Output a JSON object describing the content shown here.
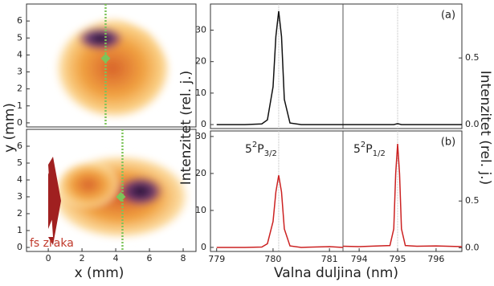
{
  "chart_data": [
    {
      "type": "image",
      "xlim": [
        -1.29,
        8.76
      ],
      "ylim": [
        -0.24,
        7.0
      ],
      "yticks": [
        0,
        1,
        2,
        3,
        4,
        5,
        6
      ],
      "cut_x": 3.4,
      "point": {
        "x": 3.4,
        "y": 3.8
      },
      "marker_color": "#7cc45a"
    },
    {
      "type": "image",
      "xlim": [
        -1.29,
        8.76
      ],
      "ylim": [
        -0.24,
        7.0
      ],
      "xticks": [
        0,
        2,
        4,
        6,
        8
      ],
      "yticks": [
        0,
        1,
        2,
        3,
        4,
        5,
        6
      ],
      "cut_x": 4.4,
      "point": {
        "x": 4.3,
        "y": 3.0
      },
      "marker_color": "#7cc45a",
      "xlabel": "x (mm)",
      "ylabel": "y (mm)",
      "annotation": "fs zraka",
      "annotation_color": "#c0392b"
    },
    {
      "type": "line",
      "panel_label": "(a)",
      "color": "#111111",
      "ylim": [
        -1.26,
        38.3
      ],
      "yticks": [
        0,
        10,
        20,
        30
      ],
      "y2lim": [
        -0.03,
        0.905
      ],
      "y2ticks": [
        {
          "value": 0,
          "label": "0.0"
        },
        {
          "value": 0.5,
          "label": "0.5"
        }
      ],
      "reference_x": [
        780.1,
        795.0
      ],
      "segments": [
        {
          "xlim": [
            778.89,
            781.24
          ],
          "x": [
            779,
            779.5,
            779.8,
            779.9,
            780.0,
            780.05,
            780.1,
            780.15,
            780.2,
            780.3,
            780.5,
            781,
            781.24
          ],
          "values": [
            0,
            0,
            0.2,
            1.5,
            12,
            28,
            36,
            28,
            8,
            0.5,
            0,
            0,
            0
          ]
        },
        {
          "xlim": [
            793.58,
            796.67
          ],
          "x": [
            793.58,
            794,
            794.9,
            795,
            795.1,
            796,
            796.67
          ],
          "values": [
            0,
            0,
            0,
            0.3,
            0,
            0,
            0
          ]
        }
      ]
    },
    {
      "type": "line",
      "panel_label": "(b)",
      "color": "#cc2222",
      "ylim": [
        -1.1,
        31.5
      ],
      "yticks": [
        0,
        10,
        20,
        30
      ],
      "y2lim": [
        -0.04,
        1.25
      ],
      "y2ticks": [
        {
          "value": 0,
          "label": "0.0"
        },
        {
          "value": 0.5,
          "label": "0.5"
        }
      ],
      "reference_x": [
        780.1,
        795.0
      ],
      "xlabel": "Valna duljina (nm)",
      "ylabel": "Intenzitet (rel. j.)",
      "y2label": "Intenzitet (rel. j.)",
      "annotations": [
        {
          "text": "5",
          "sup": "2",
          "base": "P",
          "sub": "3/2"
        },
        {
          "text": "5",
          "sup": "2",
          "base": "P",
          "sub": "1/2"
        }
      ],
      "segments": [
        {
          "xlim": [
            778.89,
            781.24
          ],
          "xticks": [
            779,
            780,
            781
          ],
          "x": [
            779,
            779.5,
            779.8,
            779.9,
            780.0,
            780.05,
            780.1,
            780.15,
            780.2,
            780.3,
            780.5,
            781,
            781.24
          ],
          "values": [
            0,
            0,
            0.1,
            1,
            7,
            15,
            19.5,
            15,
            5,
            0.4,
            0,
            0.2,
            0
          ]
        },
        {
          "xlim": [
            793.58,
            796.67
          ],
          "xticks": [
            794,
            795,
            796
          ],
          "x": [
            793.58,
            794,
            794.5,
            794.8,
            794.9,
            794.95,
            795,
            795.05,
            795.1,
            795.2,
            795.5,
            796,
            796.67
          ],
          "values": [
            0.3,
            0.2,
            0.4,
            0.5,
            5,
            20,
            28,
            20,
            5,
            0.5,
            0.3,
            0.4,
            0.2
          ]
        }
      ]
    }
  ]
}
